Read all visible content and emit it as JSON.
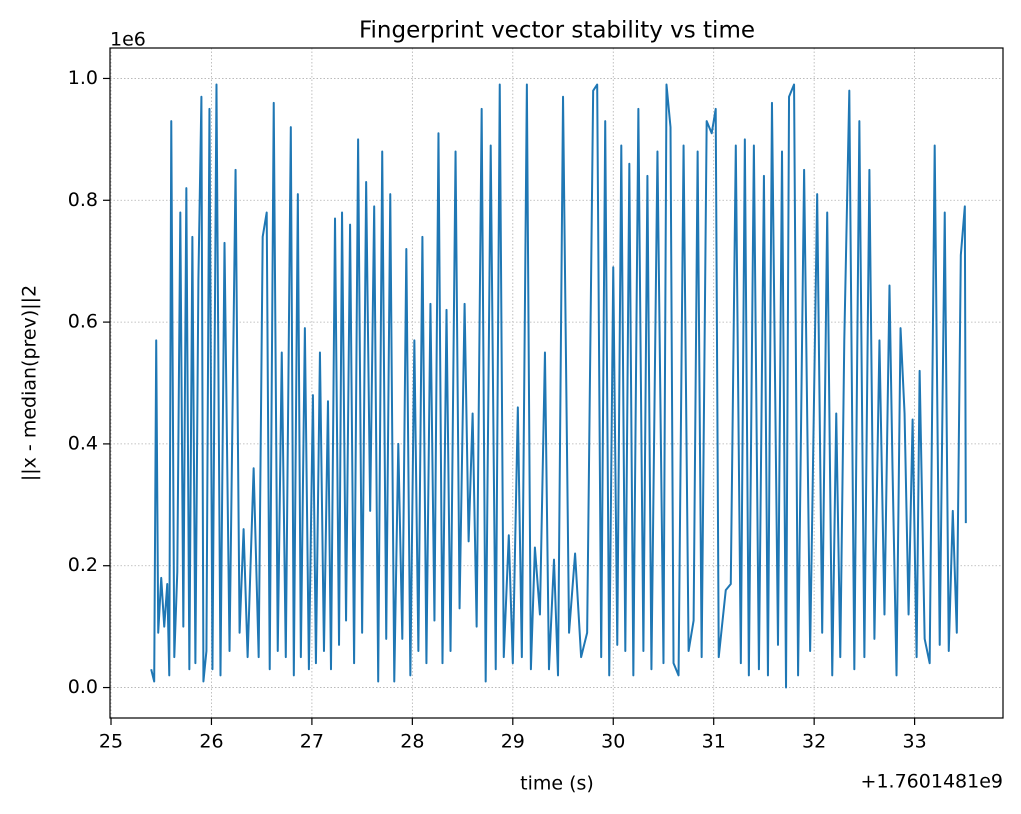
{
  "chart_data": {
    "type": "line",
    "title": "Fingerprint vector stability vs time",
    "x_label": "time (s)",
    "y_label": "||x - median(prev)||2",
    "x_offset_text": "+1.7601481e9",
    "y_offset_text": "1e6",
    "grid": true,
    "xlim": [
      24.99,
      33.88
    ],
    "xticks": [
      25,
      26,
      27,
      28,
      29,
      30,
      31,
      32,
      33
    ],
    "ylim": [
      -0.05,
      1.05
    ],
    "yticks": [
      {
        "value": 0,
        "label": "0.0"
      },
      0.2,
      0.4,
      0.6,
      0.8,
      {
        "value": 1,
        "label": "1.0"
      }
    ],
    "series": [
      {
        "color": "#1f77b4",
        "x": [
          25.4,
          25.43,
          25.45,
          25.47,
          25.5,
          25.53,
          25.56,
          25.58,
          25.6,
          25.63,
          25.66,
          25.69,
          25.72,
          25.75,
          25.78,
          25.81,
          25.84,
          25.87,
          25.9,
          25.92,
          25.95,
          25.98,
          26.01,
          26.05,
          26.09,
          26.13,
          26.18,
          26.24,
          26.28,
          26.32,
          26.36,
          26.42,
          26.47,
          26.51,
          26.55,
          26.58,
          26.62,
          26.66,
          26.7,
          26.74,
          26.79,
          26.82,
          26.86,
          26.89,
          26.93,
          26.97,
          27.01,
          27.04,
          27.08,
          27.12,
          27.16,
          27.19,
          27.23,
          27.27,
          27.3,
          27.34,
          27.38,
          27.42,
          27.46,
          27.5,
          27.54,
          27.58,
          27.62,
          27.66,
          27.7,
          27.74,
          27.78,
          27.82,
          27.86,
          27.9,
          27.94,
          27.98,
          28.02,
          28.06,
          28.1,
          28.14,
          28.18,
          28.22,
          28.26,
          28.3,
          28.34,
          28.38,
          28.43,
          28.47,
          28.52,
          28.56,
          28.6,
          28.64,
          28.69,
          28.73,
          28.78,
          28.83,
          28.87,
          28.91,
          28.96,
          29.0,
          29.05,
          29.09,
          29.14,
          29.18,
          29.22,
          29.27,
          29.32,
          29.36,
          29.41,
          29.45,
          29.5,
          29.56,
          29.62,
          29.68,
          29.74,
          29.8,
          29.84,
          29.88,
          29.92,
          29.96,
          30.0,
          30.04,
          30.08,
          30.12,
          30.16,
          30.2,
          30.25,
          30.3,
          30.34,
          30.38,
          30.44,
          30.5,
          30.53,
          30.57,
          30.6,
          30.65,
          30.7,
          30.75,
          30.8,
          30.84,
          30.88,
          30.93,
          30.98,
          31.02,
          31.05,
          31.12,
          31.17,
          31.22,
          31.27,
          31.31,
          31.35,
          31.4,
          31.45,
          31.5,
          31.54,
          31.58,
          31.64,
          31.68,
          31.72,
          31.75,
          31.8,
          31.84,
          31.9,
          31.96,
          32.03,
          32.08,
          32.13,
          32.18,
          32.22,
          32.26,
          32.3,
          32.35,
          32.4,
          32.45,
          32.5,
          32.55,
          32.6,
          32.65,
          32.7,
          32.75,
          32.78,
          32.82,
          32.86,
          32.9,
          32.94,
          32.98,
          33.02,
          33.05,
          33.1,
          33.15,
          33.2,
          33.25,
          33.3,
          33.34,
          33.38,
          33.42,
          33.46,
          33.5,
          33.51
        ],
        "values": [
          0.03,
          0.01,
          0.57,
          0.09,
          0.18,
          0.1,
          0.17,
          0.02,
          0.93,
          0.05,
          0.19,
          0.78,
          0.1,
          0.82,
          0.03,
          0.74,
          0.04,
          0.67,
          0.97,
          0.01,
          0.06,
          0.95,
          0.03,
          0.99,
          0.02,
          0.73,
          0.06,
          0.85,
          0.09,
          0.26,
          0.05,
          0.36,
          0.05,
          0.74,
          0.78,
          0.03,
          0.96,
          0.06,
          0.55,
          0.05,
          0.92,
          0.02,
          0.81,
          0.05,
          0.59,
          0.03,
          0.48,
          0.04,
          0.55,
          0.06,
          0.47,
          0.03,
          0.77,
          0.07,
          0.78,
          0.11,
          0.76,
          0.04,
          0.9,
          0.09,
          0.83,
          0.29,
          0.79,
          0.01,
          0.88,
          0.08,
          0.81,
          0.01,
          0.4,
          0.08,
          0.72,
          0.02,
          0.57,
          0.06,
          0.74,
          0.04,
          0.63,
          0.11,
          0.91,
          0.04,
          0.62,
          0.06,
          0.88,
          0.13,
          0.63,
          0.24,
          0.45,
          0.1,
          0.95,
          0.01,
          0.89,
          0.03,
          0.99,
          0.05,
          0.25,
          0.04,
          0.46,
          0.05,
          0.99,
          0.03,
          0.23,
          0.12,
          0.55,
          0.03,
          0.21,
          0.02,
          0.97,
          0.09,
          0.22,
          0.05,
          0.09,
          0.98,
          0.99,
          0.05,
          0.93,
          0.02,
          0.69,
          0.07,
          0.89,
          0.06,
          0.86,
          0.02,
          0.95,
          0.06,
          0.84,
          0.03,
          0.88,
          0.04,
          0.99,
          0.92,
          0.04,
          0.02,
          0.89,
          0.06,
          0.11,
          0.88,
          0.05,
          0.93,
          0.91,
          0.95,
          0.05,
          0.16,
          0.17,
          0.89,
          0.04,
          0.9,
          0.02,
          0.89,
          0.03,
          0.84,
          0.02,
          0.96,
          0.07,
          0.88,
          0.0,
          0.97,
          0.99,
          0.02,
          0.85,
          0.06,
          0.81,
          0.09,
          0.78,
          0.02,
          0.45,
          0.05,
          0.57,
          0.98,
          0.03,
          0.93,
          0.05,
          0.85,
          0.08,
          0.57,
          0.12,
          0.66,
          0.36,
          0.02,
          0.59,
          0.45,
          0.12,
          0.44,
          0.05,
          0.52,
          0.08,
          0.04,
          0.89,
          0.07,
          0.78,
          0.06,
          0.29,
          0.09,
          0.71,
          0.79,
          0.27
        ]
      }
    ]
  }
}
